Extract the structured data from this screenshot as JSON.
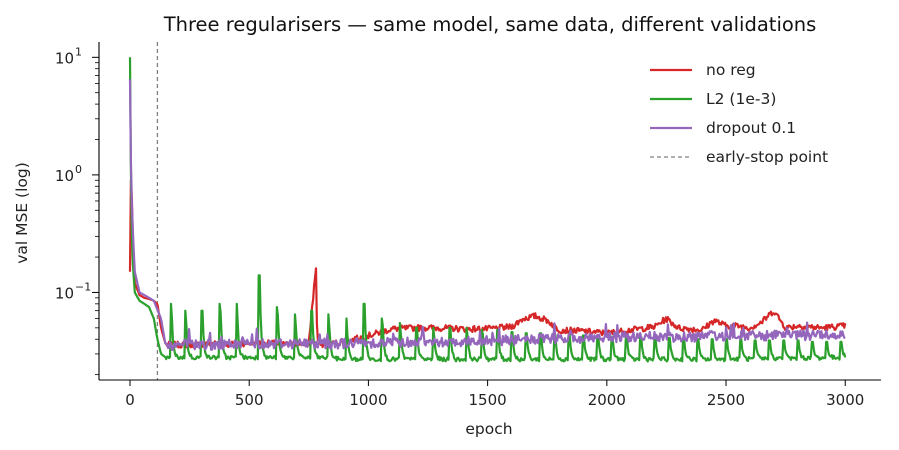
{
  "chart_data": {
    "type": "line",
    "title": "Three regularisers — same model, same data, different validations",
    "xlabel": "epoch",
    "ylabel": "val MSE (log)",
    "y_scale": "log",
    "xlim": [
      -130,
      3150
    ],
    "ylim": [
      0.018,
      13.5
    ],
    "x_ticks": [
      0,
      500,
      1000,
      1500,
      2000,
      2500,
      3000
    ],
    "x_tick_labels": [
      "0",
      "500",
      "1000",
      "1500",
      "2000",
      "2500",
      "3000"
    ],
    "y_ticks": [
      0.1,
      1,
      10
    ],
    "y_tick_labels": [
      "10",
      "10",
      "10"
    ],
    "y_tick_exponents": [
      "−1",
      "0",
      "1"
    ],
    "grid": false,
    "legend_position": "top-right",
    "early_stop": {
      "name": "early-stop point",
      "x": 115,
      "color": "#808080",
      "style": "dashed"
    },
    "series": [
      {
        "name": "no reg",
        "color": "#d62728",
        "x": [
          0,
          5,
          10,
          20,
          40,
          60,
          80,
          100,
          115,
          130,
          150,
          200,
          250,
          300,
          350,
          400,
          450,
          500,
          550,
          600,
          650,
          700,
          750,
          780,
          785,
          800,
          900,
          1000,
          1100,
          1200,
          1300,
          1400,
          1500,
          1600,
          1650,
          1700,
          1750,
          1800,
          1900,
          2000,
          2100,
          2200,
          2250,
          2300,
          2400,
          2450,
          2500,
          2550,
          2600,
          2650,
          2700,
          2750,
          2800,
          2900,
          3000
        ],
        "values": [
          0.15,
          1.4,
          0.35,
          0.12,
          0.095,
          0.09,
          0.088,
          0.085,
          0.08,
          0.05,
          0.036,
          0.036,
          0.036,
          0.036,
          0.037,
          0.036,
          0.037,
          0.037,
          0.037,
          0.037,
          0.036,
          0.037,
          0.037,
          0.165,
          0.04,
          0.036,
          0.038,
          0.043,
          0.049,
          0.05,
          0.05,
          0.049,
          0.049,
          0.051,
          0.06,
          0.063,
          0.058,
          0.048,
          0.047,
          0.045,
          0.048,
          0.051,
          0.06,
          0.05,
          0.048,
          0.058,
          0.052,
          0.052,
          0.05,
          0.056,
          0.07,
          0.05,
          0.052,
          0.05,
          0.052
        ]
      },
      {
        "name": "L2 (1e-3)",
        "color": "#2ca02c",
        "x": [
          0,
          3,
          5,
          8,
          10,
          20,
          40,
          60,
          80,
          100,
          115,
          130,
          150,
          180,
          200,
          250,
          300,
          400,
          500,
          540,
          550,
          600,
          700,
          800,
          900,
          1000,
          1500,
          2000,
          2500,
          3000
        ],
        "values": [
          10.0,
          0.12,
          9.5,
          0.3,
          0.2,
          0.1,
          0.085,
          0.08,
          0.075,
          0.06,
          0.04,
          0.03,
          0.028,
          0.027,
          0.028,
          0.028,
          0.028,
          0.028,
          0.028,
          0.028,
          0.028,
          0.028,
          0.028,
          0.028,
          0.027,
          0.027,
          0.027,
          0.027,
          0.027,
          0.028
        ],
        "spike_epochs": [
          170,
          230,
          300,
          375,
          445,
          540,
          615,
          690,
          760,
          830,
          905,
          980,
          1055,
          1130,
          1200,
          1270,
          1340,
          1410,
          1475,
          1540,
          1600,
          1660,
          1720,
          1780,
          1840,
          1900,
          1960,
          2020,
          2080,
          2140,
          2200,
          2260,
          2320,
          2380,
          2440,
          2500,
          2560,
          2620,
          2680,
          2740,
          2800,
          2860,
          2920,
          2980
        ],
        "spike_values": [
          0.08,
          0.07,
          0.07,
          0.08,
          0.08,
          0.14,
          0.075,
          0.065,
          0.07,
          0.065,
          0.06,
          0.08,
          0.06,
          0.055,
          0.05,
          0.05,
          0.05,
          0.05,
          0.048,
          0.048,
          0.046,
          0.045,
          0.045,
          0.044,
          0.044,
          0.043,
          0.043,
          0.042,
          0.042,
          0.042,
          0.041,
          0.041,
          0.041,
          0.04,
          0.04,
          0.04,
          0.04,
          0.039,
          0.039,
          0.039,
          0.039,
          0.038,
          0.038,
          0.038
        ]
      },
      {
        "name": "dropout 0.1",
        "color": "#9467bd",
        "x": [
          0,
          5,
          10,
          20,
          40,
          60,
          80,
          100,
          130,
          150,
          200,
          300,
          400,
          500,
          700,
          900,
          1100,
          1300,
          1500,
          1700,
          1900,
          2100,
          2300,
          2500,
          2700,
          2900,
          3000
        ],
        "values": [
          6.5,
          0.9,
          0.4,
          0.15,
          0.1,
          0.095,
          0.09,
          0.085,
          0.06,
          0.035,
          0.036,
          0.036,
          0.036,
          0.037,
          0.037,
          0.037,
          0.038,
          0.038,
          0.039,
          0.04,
          0.041,
          0.042,
          0.042,
          0.043,
          0.043,
          0.044,
          0.044
        ]
      }
    ]
  }
}
